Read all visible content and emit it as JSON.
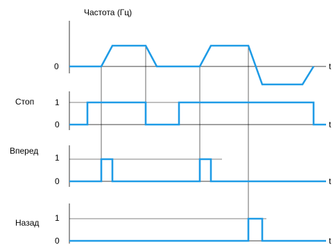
{
  "title": "Частота (Гц)",
  "time_axis_label": "t",
  "colors": {
    "signal": "#1e9be6",
    "axis": "#000000"
  },
  "chart_data": {
    "type": "line",
    "x_unit": "t",
    "channels": [
      {
        "label": "",
        "ticks": [
          "0"
        ],
        "points": [
          [
            0,
            0
          ],
          [
            2,
            0
          ],
          [
            3,
            1
          ],
          [
            5,
            1
          ],
          [
            6,
            0
          ],
          [
            8,
            0
          ],
          [
            9,
            1
          ],
          [
            11,
            1
          ],
          [
            12,
            -1
          ],
          [
            14,
            -1
          ],
          [
            15,
            0
          ]
        ]
      },
      {
        "label": "Стоп",
        "ticks": [
          "1",
          "0"
        ],
        "points": [
          [
            0,
            0
          ],
          [
            1,
            0
          ],
          [
            1,
            1
          ],
          [
            5,
            1
          ],
          [
            5,
            0
          ],
          [
            7,
            0
          ],
          [
            7,
            1
          ],
          [
            14,
            1
          ],
          [
            14,
            0
          ],
          [
            15,
            0
          ]
        ]
      },
      {
        "label": "Вперед",
        "ticks": [
          "1",
          "0"
        ],
        "points": [
          [
            0,
            0
          ],
          [
            2,
            0
          ],
          [
            2,
            1
          ],
          [
            3,
            1
          ],
          [
            3,
            0
          ],
          [
            8,
            0
          ],
          [
            8,
            1
          ],
          [
            9,
            1
          ],
          [
            9,
            0
          ],
          [
            15,
            0
          ]
        ]
      },
      {
        "label": "Назад",
        "ticks": [
          "1",
          "0"
        ],
        "points": [
          [
            0,
            0
          ],
          [
            11,
            0
          ],
          [
            11,
            1
          ],
          [
            12,
            1
          ],
          [
            12,
            0
          ],
          [
            15,
            0
          ]
        ]
      }
    ]
  }
}
